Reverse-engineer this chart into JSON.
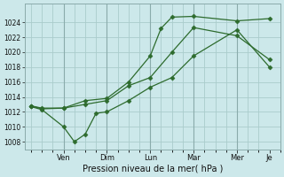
{
  "background_color": "#cce8ea",
  "grid_color": "#aacccc",
  "line_color": "#2d6b2d",
  "title": "Pression niveau de la mer( hPa )",
  "ylim": [
    1007,
    1026.5
  ],
  "yticks": [
    1008,
    1010,
    1012,
    1014,
    1016,
    1018,
    1020,
    1022,
    1024
  ],
  "xlim": [
    -0.3,
    11.3
  ],
  "x_tick_positions": [
    1.5,
    3.5,
    5.5,
    7.5,
    9.5,
    11.0
  ],
  "x_tick_labels": [
    "Ven",
    "Dim",
    "Lun",
    "Mar",
    "Mer",
    "Je"
  ],
  "vline_positions": [
    1.5,
    3.5,
    5.5,
    7.5,
    9.5
  ],
  "series1_x": [
    0,
    0.5,
    1.5,
    2.0,
    2.5,
    3.0,
    3.5,
    4.5,
    5.5,
    6.5,
    7.5,
    9.5,
    11.0
  ],
  "series1_y": [
    1012.7,
    1012.3,
    1010.0,
    1008.0,
    1009.0,
    1011.8,
    1012.0,
    1013.5,
    1015.3,
    1016.6,
    1019.5,
    1023.0,
    1018.0
  ],
  "series2_x": [
    0,
    0.5,
    1.5,
    2.5,
    3.5,
    4.5,
    5.5,
    6.5,
    7.5,
    9.5,
    11.0
  ],
  "series2_y": [
    1012.8,
    1012.5,
    1012.5,
    1013.0,
    1013.5,
    1015.5,
    1016.6,
    1020.0,
    1023.3,
    1022.2,
    1019.0
  ],
  "series3_x": [
    0,
    0.5,
    1.5,
    2.5,
    3.5,
    4.5,
    5.5,
    6.0,
    6.5,
    7.5,
    9.5,
    11.0
  ],
  "series3_y": [
    1012.8,
    1012.4,
    1012.5,
    1013.5,
    1013.8,
    1016.0,
    1019.5,
    1023.2,
    1024.7,
    1024.8,
    1024.2,
    1024.5
  ]
}
